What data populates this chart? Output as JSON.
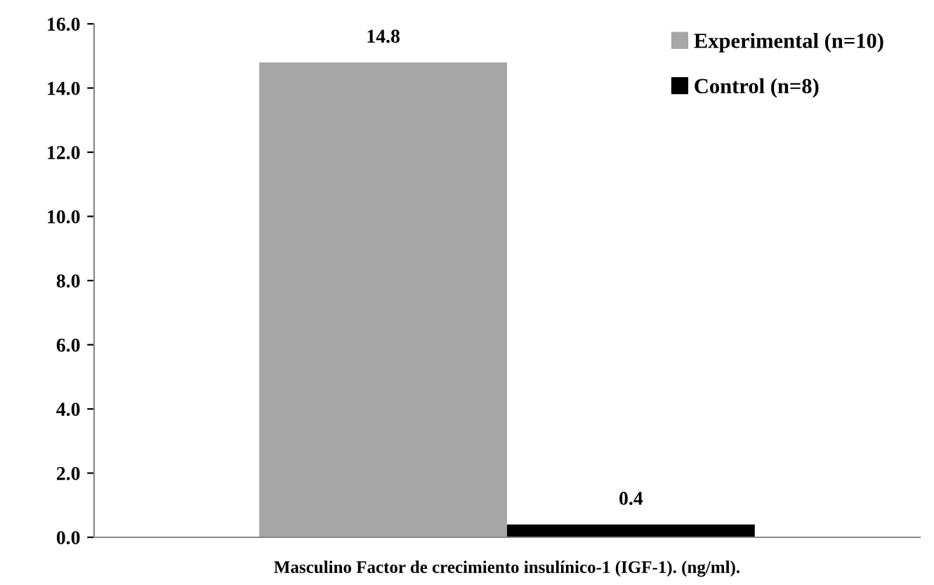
{
  "chart_data": {
    "type": "bar",
    "categories": [
      "Masculino Factor de crecimiento insulínico-1 (IGF-1). (ng/ml)."
    ],
    "series": [
      {
        "name": "Experimental (n=10)",
        "color": "#a6a6a6",
        "values": [
          14.8
        ]
      },
      {
        "name": "Control (n=8)",
        "color": "#000000",
        "values": [
          0.4
        ]
      }
    ],
    "ylim": [
      0,
      16
    ],
    "yticks": [
      {
        "value": 0,
        "label": "0.0"
      },
      {
        "value": 2,
        "label": "2.0"
      },
      {
        "value": 4,
        "label": "4.0"
      },
      {
        "value": 6,
        "label": "6.0"
      },
      {
        "value": 8,
        "label": "8.0"
      },
      {
        "value": 10,
        "label": "10.0"
      },
      {
        "value": 12,
        "label": "12.0"
      },
      {
        "value": 14,
        "label": "14.0"
      },
      {
        "value": 16,
        "label": "16.0"
      }
    ],
    "grid": false,
    "legend": "top right",
    "data_labels": true
  }
}
